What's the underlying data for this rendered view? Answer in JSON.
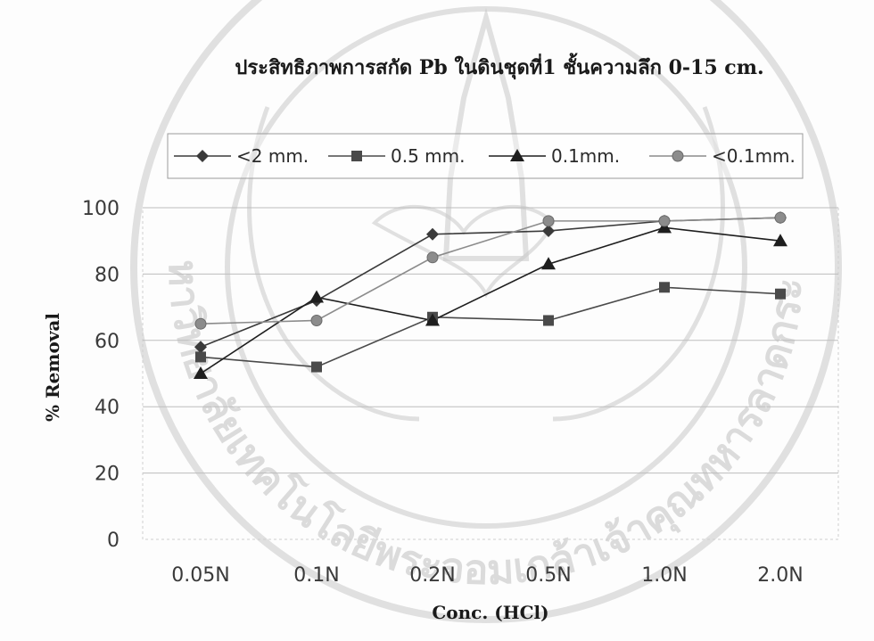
{
  "chart_data": {
    "type": "line",
    "title": "ประสิทธิภาพการสกัด Pb ในดินชุดที่1 ชั้นความลึก 0-15 cm.",
    "xlabel": "Conc. (HCl)",
    "ylabel": "% Removal",
    "categories": [
      "0.05N",
      "0.1N",
      "0.2N",
      "0.5N",
      "1.0N",
      "2.0N"
    ],
    "ylim": [
      0,
      100
    ],
    "yticks": [
      0,
      20,
      40,
      60,
      80,
      100
    ],
    "grid": true,
    "legend_position": "top",
    "series": [
      {
        "name": "<2 mm.",
        "marker": "diamond",
        "color": "#3a3a3a",
        "values": [
          58,
          72,
          92,
          93,
          96,
          97
        ]
      },
      {
        "name": "0.5 mm.",
        "marker": "square",
        "color": "#4a4a4a",
        "values": [
          55,
          52,
          67,
          66,
          76,
          74
        ]
      },
      {
        "name": "0.1mm.",
        "marker": "triangle",
        "color": "#1e1e1e",
        "values": [
          50,
          73,
          66,
          83,
          94,
          90
        ]
      },
      {
        "name": "<0.1mm.",
        "marker": "circle",
        "color": "#8c8c8c",
        "values": [
          65,
          66,
          85,
          96,
          96,
          97
        ]
      }
    ]
  },
  "watermark": {
    "text": "มหาวิทยาลัยเทคโนโลยีพระจอมเกล้าเจ้าคุณทหารลาดกระบัง"
  }
}
